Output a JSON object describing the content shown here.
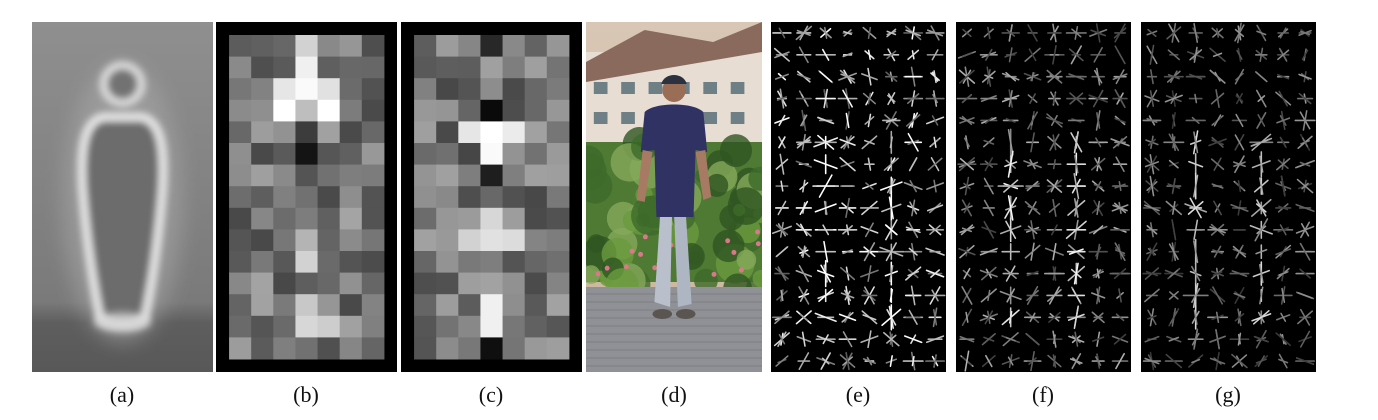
{
  "figure": {
    "captions": [
      "(a)",
      "(b)",
      "(c)",
      "(d)",
      "(e)",
      "(f)",
      "(g)"
    ],
    "panels": [
      {
        "name": "average-gradient-panel",
        "kind": "blurred-silhouette"
      },
      {
        "name": "weight-grid-panel-b",
        "kind": "gray-block-grid",
        "seed": 11
      },
      {
        "name": "weight-grid-panel-c",
        "kind": "gray-block-grid",
        "seed": 29
      },
      {
        "name": "pedestrian-photo-panel",
        "kind": "photo"
      },
      {
        "name": "hog-descriptor-panel-e",
        "kind": "hog-glyphs",
        "seed": 5,
        "intensity": 1.0
      },
      {
        "name": "hog-descriptor-panel-f",
        "kind": "hog-glyphs",
        "seed": 17,
        "intensity": 0.7
      },
      {
        "name": "hog-descriptor-panel-g",
        "kind": "hog-glyphs",
        "seed": 41,
        "intensity": 0.6
      }
    ]
  }
}
